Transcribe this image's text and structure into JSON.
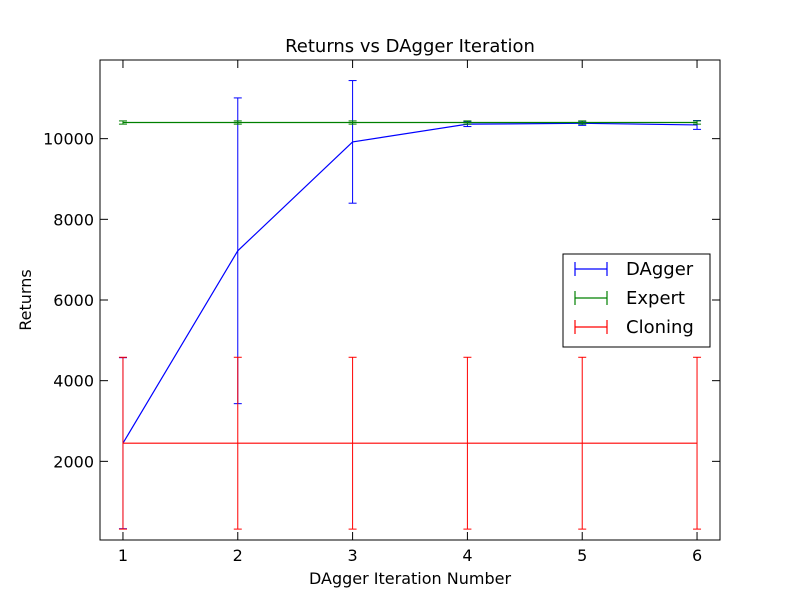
{
  "chart_data": {
    "type": "line",
    "title": "Returns vs DAgger Iteration",
    "xlabel": "DAgger Iteration Number",
    "ylabel": "Returns",
    "xlim": [
      0.8,
      6.2
    ],
    "ylim": [
      50,
      11950
    ],
    "xticks": [
      1,
      2,
      3,
      4,
      5,
      6
    ],
    "yticks": [
      2000,
      4000,
      6000,
      8000,
      10000
    ],
    "grid": false,
    "legend_position": "center-right",
    "series": [
      {
        "name": "DAgger",
        "color": "#0000ff",
        "x": [
          1,
          2,
          3,
          4,
          5,
          6
        ],
        "y": [
          2450,
          7220,
          9920,
          10360,
          10380,
          10340
        ],
        "yerr": [
          2120,
          3790,
          1520,
          60,
          50,
          110
        ]
      },
      {
        "name": "Expert",
        "color": "#008000",
        "x": [
          1,
          2,
          3,
          4,
          5,
          6
        ],
        "y": [
          10400,
          10400,
          10400,
          10400,
          10400,
          10400
        ],
        "yerr": [
          40,
          40,
          40,
          40,
          40,
          40
        ]
      },
      {
        "name": "Cloning",
        "color": "#ff0000",
        "x": [
          1,
          2,
          3,
          4,
          5,
          6
        ],
        "y": [
          2450,
          2450,
          2450,
          2450,
          2450,
          2450
        ],
        "yerr": [
          2130,
          2130,
          2130,
          2130,
          2130,
          2130
        ]
      }
    ]
  }
}
